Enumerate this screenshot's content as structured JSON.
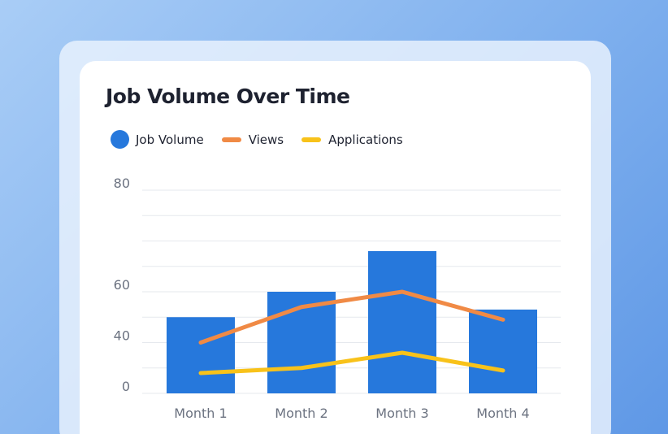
{
  "colors": {
    "job_volume": "#2678dc",
    "views": "#f08a45",
    "applications": "#f8c21a",
    "grid": "#e6e9ee",
    "axis_text": "#6b7280"
  },
  "legend": [
    {
      "label": "Job Volume",
      "color": "#2678dc",
      "marker": "circle"
    },
    {
      "label": "Views",
      "color": "#f08a45",
      "marker": "line"
    },
    {
      "label": "Applications",
      "color": "#f8c21a",
      "marker": "line"
    }
  ],
  "chart_data": {
    "type": "bar",
    "title": "Job Volume Over Time",
    "xlabel": "",
    "ylabel": "",
    "categories": [
      "Month 1",
      "Month 2",
      "Month 3",
      "Month 4"
    ],
    "ylim": [
      0,
      80
    ],
    "y_ticks": [
      "0",
      "40",
      "60",
      "80"
    ],
    "grid": true,
    "legend_position": "top-left",
    "series": [
      {
        "name": "Job Volume",
        "type": "bar",
        "color": "#2678dc",
        "values": [
          30,
          40,
          56,
          33
        ]
      },
      {
        "name": "Views",
        "type": "line",
        "color": "#f08a45",
        "values": [
          20,
          34,
          40,
          29
        ]
      },
      {
        "name": "Applications",
        "type": "line",
        "color": "#f8c21a",
        "values": [
          8,
          10,
          16,
          9
        ]
      }
    ]
  }
}
